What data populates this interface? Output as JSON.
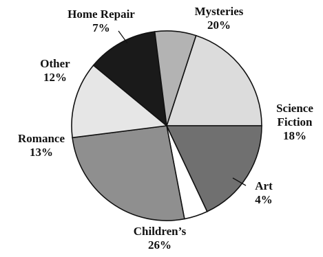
{
  "chart_data": {
    "type": "pie",
    "title": "",
    "slices": [
      {
        "label": [
          "Mysteries"
        ],
        "percent_label": "20%",
        "value": 20,
        "color": "#dcdcdc"
      },
      {
        "label": [
          "Science",
          "Fiction"
        ],
        "percent_label": "18%",
        "value": 18,
        "color": "#707070"
      },
      {
        "label": [
          "Art"
        ],
        "percent_label": "4%",
        "value": 4,
        "color": "#ffffff"
      },
      {
        "label": [
          "Children’s"
        ],
        "percent_label": "26%",
        "value": 26,
        "color": "#8f8f8f"
      },
      {
        "label": [
          "Romance"
        ],
        "percent_label": "13%",
        "value": 13,
        "color": "#e6e6e6"
      },
      {
        "label": [
          "Other"
        ],
        "percent_label": "12%",
        "value": 12,
        "color": "#1a1a1a"
      },
      {
        "label": [
          "Home Repair"
        ],
        "percent_label": "7%",
        "value": 7,
        "color": "#b3b3b3"
      }
    ]
  }
}
